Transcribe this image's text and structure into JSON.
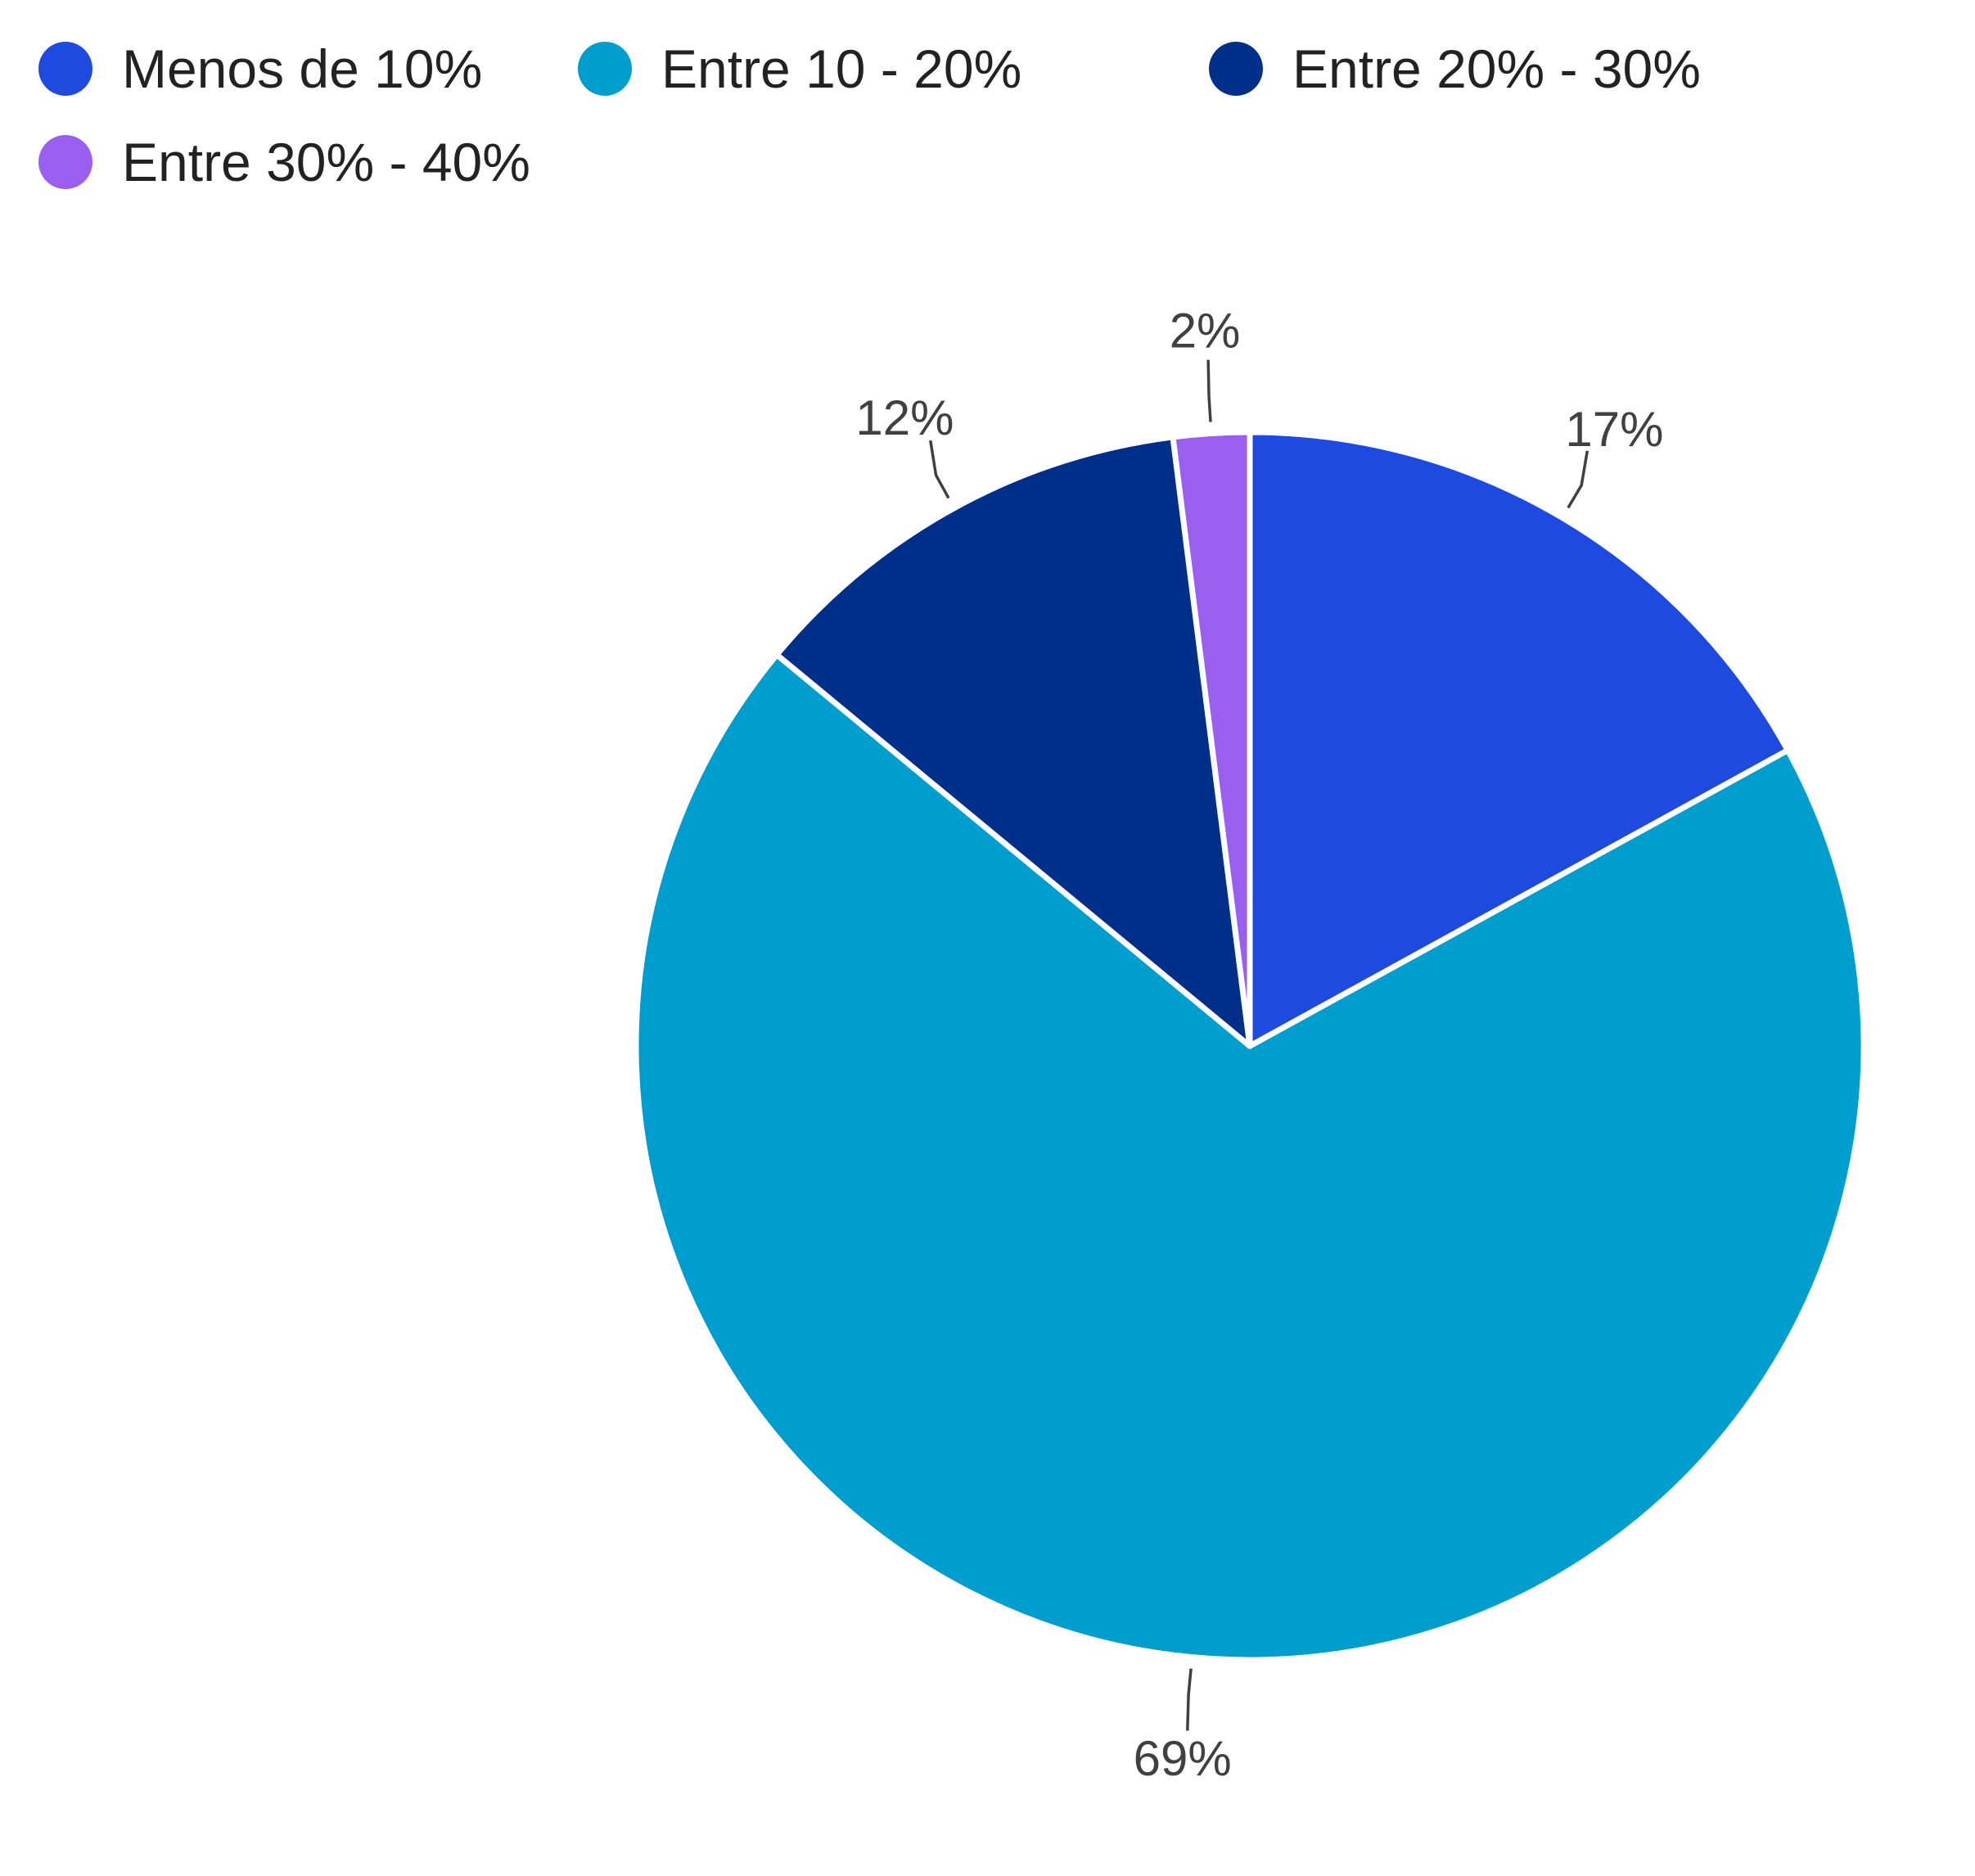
{
  "chart_data": {
    "type": "pie",
    "categories": [
      "Menos de 10%",
      "Entre 10 - 20%",
      "Entre 20% - 30%",
      "Entre 30% - 40%"
    ],
    "values": [
      17,
      69,
      12,
      2
    ],
    "data_labels": [
      "17%",
      "69%",
      "12%",
      "2%"
    ],
    "colors": [
      "#1f4ae0",
      "#009ecf",
      "#002f8a",
      "#9b5ff0"
    ],
    "legend": {
      "position": "top-left",
      "entries": [
        "Menos de 10%",
        "Entre 10 - 20%",
        "Entre 20% - 30%",
        "Entre 30% - 40%"
      ]
    },
    "start_angle": "12 o'clock",
    "direction": "clockwise"
  }
}
